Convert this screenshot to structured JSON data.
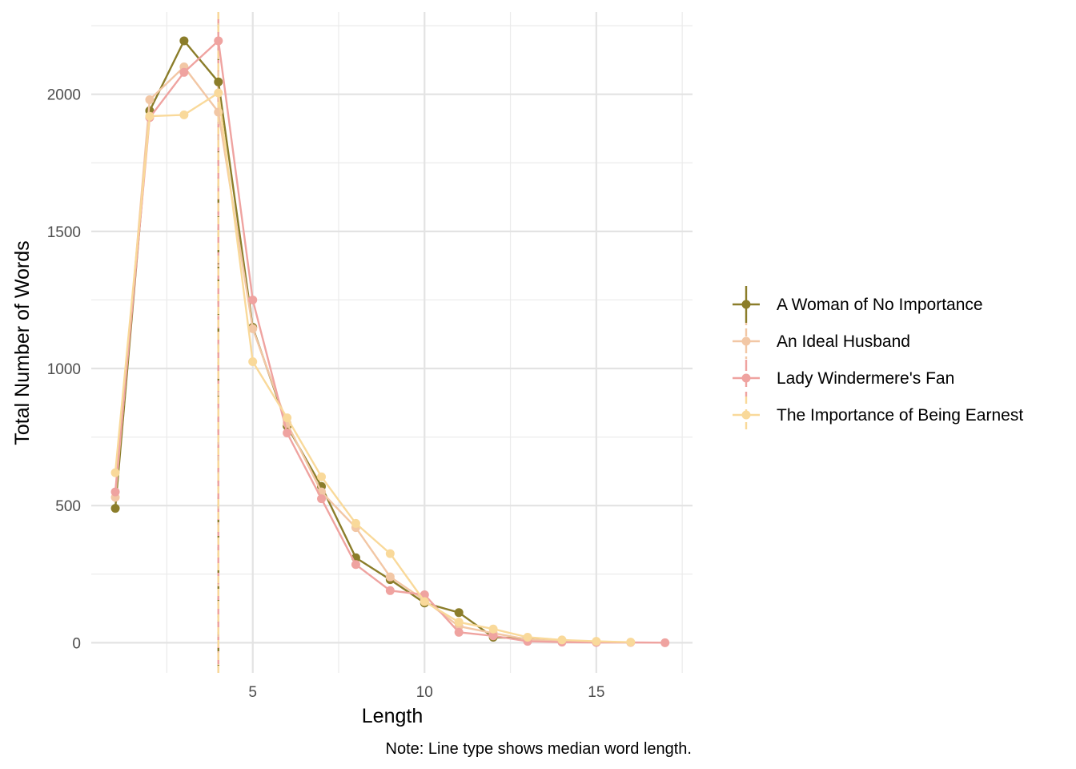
{
  "chart_data": {
    "type": "line",
    "title": "",
    "xlabel": "Length",
    "ylabel": "Total Number of Words",
    "caption": "Note: Line type shows median word length.",
    "xlim": [
      0.3,
      17.8
    ],
    "ylim": [
      -110,
      2300
    ],
    "x_ticks": [
      5,
      10,
      15
    ],
    "y_ticks": [
      0,
      500,
      1000,
      1500,
      2000
    ],
    "grid": true,
    "legend_position": "right",
    "series": [
      {
        "name": "A Woman of No Importance",
        "color": "#8B7D2A",
        "median": 4,
        "median_linetype": "solid",
        "x": [
          1,
          2,
          3,
          4,
          5,
          6,
          7,
          8,
          9,
          10,
          11,
          12,
          13,
          14,
          15
        ],
        "values": [
          490,
          1940,
          2195,
          2045,
          1150,
          790,
          570,
          310,
          230,
          145,
          110,
          20,
          15,
          8,
          3
        ]
      },
      {
        "name": "An Ideal Husband",
        "color": "#F2C7A5",
        "median": 4,
        "median_linetype": "dotdash",
        "x": [
          1,
          2,
          3,
          4,
          5,
          6,
          7,
          8,
          9,
          10,
          11,
          12,
          13,
          14,
          15
        ],
        "values": [
          530,
          1980,
          2100,
          1935,
          1145,
          800,
          550,
          420,
          240,
          155,
          60,
          35,
          12,
          5,
          2
        ]
      },
      {
        "name": "Lady Windermere's Fan",
        "color": "#EFA3A0",
        "median": 4,
        "median_linetype": "longdash",
        "x": [
          1,
          2,
          3,
          4,
          5,
          6,
          7,
          8,
          9,
          10,
          11,
          12,
          13,
          14,
          15,
          16,
          17
        ],
        "values": [
          550,
          1915,
          2080,
          2195,
          1250,
          765,
          525,
          285,
          190,
          175,
          38,
          25,
          5,
          2,
          1,
          1,
          0
        ]
      },
      {
        "name": "The Importance of Being Earnest",
        "color": "#F9D99A",
        "median": 4,
        "median_linetype": "dashed",
        "x": [
          1,
          2,
          3,
          4,
          5,
          6,
          7,
          8,
          9,
          10,
          11,
          12,
          13,
          14,
          15,
          16
        ],
        "values": [
          620,
          1920,
          1925,
          2005,
          1025,
          820,
          605,
          435,
          325,
          150,
          75,
          50,
          20,
          10,
          5,
          2
        ]
      }
    ]
  }
}
